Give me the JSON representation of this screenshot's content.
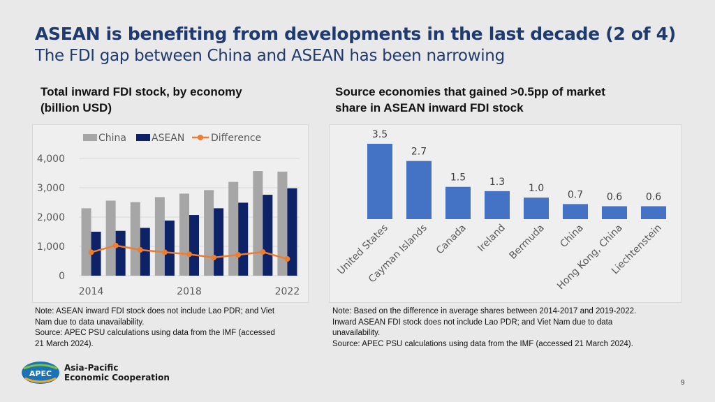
{
  "header": {
    "title": "ASEAN is benefiting from developments in the last decade (2 of 4)",
    "subtitle": "The FDI gap between China and ASEAN has been narrowing"
  },
  "left_panel": {
    "title": "Total inward FDI stock, by economy\n(billion USD)",
    "note": "Note: ASEAN inward FDI stock does not include Lao PDR; and Viet\nNam due to data unavailability.",
    "source": "Source: APEC PSU calculations using data from the IMF (accessed\n21 March 2024)."
  },
  "right_panel": {
    "title": "Source economies that gained >0.5pp of market\nshare in ASEAN inward FDI stock",
    "note": "Note: Based on the difference in average shares between 2014-2017 and 2019-2022.\nInward ASEAN FDI stock does not include Lao PDR; and Viet Nam due to data\nunavailability.",
    "source": "Source: APEC PSU calculations using data from the IMF (accessed 21 March 2024)."
  },
  "chart_data": [
    {
      "type": "bar",
      "title": "Total inward FDI stock, by economy (billion USD)",
      "categories": [
        2014,
        2015,
        2016,
        2017,
        2018,
        2019,
        2020,
        2021,
        2022
      ],
      "x_tick_labels": [
        "2014",
        "2018",
        "2022"
      ],
      "y_tick_labels": [
        "0",
        "1,000",
        "2,000",
        "3,000",
        "4,000"
      ],
      "ylim": [
        0,
        4000
      ],
      "legend_position": "top",
      "series": [
        {
          "name": "China",
          "kind": "bar",
          "color": "#a6a6a6",
          "values": [
            2300,
            2560,
            2510,
            2680,
            2800,
            2920,
            3200,
            3570,
            3550
          ]
        },
        {
          "name": "ASEAN",
          "kind": "bar",
          "color": "#0d2267",
          "values": [
            1500,
            1530,
            1630,
            1880,
            2070,
            2300,
            2490,
            2760,
            2980
          ]
        },
        {
          "name": "Difference",
          "kind": "line",
          "color": "#ed7d31",
          "values": [
            800,
            1030,
            880,
            800,
            730,
            620,
            710,
            810,
            570
          ]
        }
      ]
    },
    {
      "type": "bar",
      "title": "Source economies that gained >0.5pp of market share in ASEAN inward FDI stock",
      "color": "#4472c4",
      "categories": [
        "United States",
        "Cayman Islands",
        "Canada",
        "Ireland",
        "Bermuda",
        "China",
        "Hong Kong, China",
        "Liechtenstein"
      ],
      "values": [
        3.5,
        2.7,
        1.5,
        1.3,
        1.0,
        0.7,
        0.6,
        0.6
      ],
      "value_labels": [
        "3.5",
        "2.7",
        "1.5",
        "1.3",
        "1.0",
        "0.7",
        "0.6",
        "0.6"
      ],
      "ylim": [
        0,
        3.5
      ]
    }
  ],
  "footer": {
    "logo_badge": "APEC",
    "logo_line1": "Asia-Pacific",
    "logo_line2": "Economic Cooperation",
    "page_number": "9"
  }
}
